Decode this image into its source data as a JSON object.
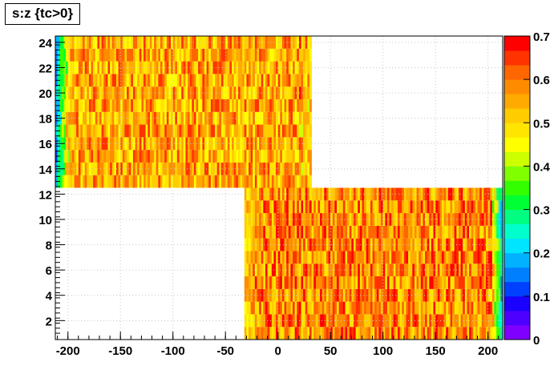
{
  "chart_data": {
    "type": "heatmap",
    "title": "s:z {tc>0}",
    "xlabel": "",
    "ylabel": "",
    "xlim": [
      -212,
      214
    ],
    "ylim": [
      0.5,
      24.5
    ],
    "zlim": [
      0,
      0.7
    ],
    "grid": true,
    "x_ticks": [
      -200,
      -150,
      -100,
      -50,
      0,
      50,
      100,
      150,
      200
    ],
    "y_ticks": [
      2,
      4,
      6,
      8,
      10,
      12,
      14,
      16,
      18,
      20,
      22,
      24
    ],
    "z_ticks": [
      0,
      0.1,
      0.2,
      0.3,
      0.4,
      0.5,
      0.6,
      0.7
    ],
    "x_tick_labels": [
      "-200",
      "-150",
      "-100",
      "-50",
      "0",
      "50",
      "100",
      "150",
      "200"
    ],
    "y_tick_labels": [
      "2",
      "4",
      "6",
      "8",
      "10",
      "12",
      "14",
      "16",
      "18",
      "20",
      "22",
      "24"
    ],
    "z_tick_labels": [
      "0",
      "0.1",
      "0.2",
      "0.3",
      "0.4",
      "0.5",
      "0.6",
      "0.7"
    ],
    "palette": [
      "#7f00ff",
      "#4d00ff",
      "#1a00ff",
      "#0040ff",
      "#0080ff",
      "#00b2ff",
      "#00e5ff",
      "#00ffcc",
      "#00ff80",
      "#00ff33",
      "#33ff00",
      "#80ff00",
      "#ccff00",
      "#ffff00",
      "#ffe500",
      "#ffcc00",
      "#ffaa00",
      "#ff8c00",
      "#ff6600",
      "#ff3300",
      "#ff0000"
    ],
    "regions": [
      {
        "s_range": [
          13,
          24
        ],
        "z_range": [
          -212,
          32
        ],
        "typical_value": 0.55,
        "low_edge_value": 0.2,
        "high_edge_value": 0.5
      },
      {
        "s_range": [
          1,
          12
        ],
        "z_range": [
          -32,
          214
        ],
        "typical_value": 0.58,
        "low_edge_value": 0.5,
        "high_edge_value": 0.15
      }
    ]
  }
}
